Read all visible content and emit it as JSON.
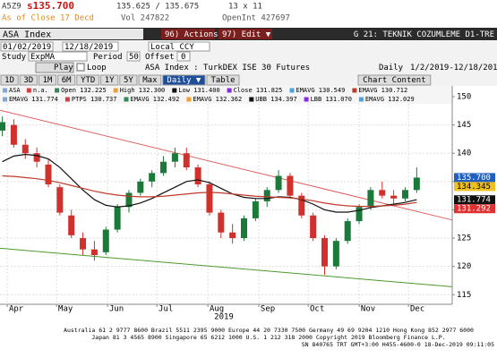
{
  "header": {
    "ticker": "A5Z9",
    "last": "s135.700",
    "bid_ask": "135.625 / 135.675",
    "size": "13 x 11",
    "as_of": "As of Close 17 Decd",
    "volume": "Vol 247822",
    "open_interest": "OpenInt 427697"
  },
  "toolbar": {
    "security": "ASA Index",
    "actions": "96) Actions ▼",
    "edit": "97) Edit ▼",
    "page_title": "G 21: TEKNIK COZUMLEME D1-TRE"
  },
  "controls": {
    "start_date": "01/02/2019",
    "end_date": "12/18/2019",
    "currency": "Local CCY",
    "study_label": "Study",
    "study": "ExpMA",
    "period_label": "Period",
    "period": 50,
    "offset_label": "Offset",
    "offset": 0,
    "play": "Play",
    "loop": "Loop",
    "description": "ASA Index : TurkDEX ISE 30 Futures",
    "frequency": "Daily",
    "range": "1/2/2019-12/18/2019"
  },
  "tabs": [
    "1D",
    "3D",
    "1M",
    "6M",
    "YTD",
    "1Y",
    "5Y",
    "Max",
    "Daily ▼",
    "Table",
    "Chart Content"
  ],
  "legend": [
    [
      "ASA",
      "n.a.",
      "Open 132.225",
      "High 132.300",
      "Low 131.400",
      "Close 131.825",
      "EMAVG 130.549",
      "EMAVG 130.712"
    ],
    [
      "EMAVG 131.774",
      "PTPS 130.737",
      "EMAVG 132.492",
      "EMAVG 132.362",
      "UBB 134.397",
      "LBB 131.070",
      "EMAVG 132.029"
    ]
  ],
  "chart_data": {
    "type": "candlestick",
    "x": [
      88,
      95,
      102,
      109,
      116,
      123,
      130,
      137,
      144,
      151,
      158,
      165,
      172,
      179,
      186,
      193,
      200,
      207,
      214,
      221,
      228,
      235,
      242,
      249,
      256,
      263,
      270,
      277,
      284,
      291,
      298,
      305,
      312,
      319,
      326,
      333,
      340
    ],
    "open": [
      144,
      145,
      141.5,
      140,
      138,
      134,
      129,
      125,
      123,
      122.5,
      126.5,
      130.5,
      133,
      135,
      136.5,
      138.5,
      140,
      137.5,
      134.5,
      129.5,
      126,
      125,
      128.5,
      131.5,
      133.5,
      136,
      132.5,
      129,
      125,
      120,
      124.5,
      128,
      130.5,
      133.5,
      132.5,
      132,
      133.5
    ],
    "high": [
      146.5,
      146,
      142.5,
      141,
      139,
      134.5,
      130,
      126,
      124.5,
      127,
      131,
      133.5,
      135.5,
      137,
      139.5,
      141,
      141,
      138,
      135,
      130,
      127.5,
      129,
      132,
      134,
      137,
      136.5,
      133,
      129.5,
      125.5,
      125,
      128.5,
      131,
      134,
      135,
      133.5,
      134,
      137.5
    ],
    "low": [
      143,
      141,
      139,
      137.5,
      134,
      129,
      125,
      122,
      121,
      122,
      126,
      129.5,
      132.5,
      134,
      136,
      137.5,
      137,
      134,
      129,
      125,
      124,
      124.5,
      128,
      130.5,
      133,
      132,
      128.5,
      124.5,
      118.5,
      119.5,
      124,
      127.5,
      130,
      132,
      131,
      131.5,
      133
    ],
    "close": [
      145.5,
      141.5,
      140,
      138.5,
      134.5,
      129.5,
      125.5,
      123,
      122,
      126.5,
      130.5,
      133,
      135,
      136.5,
      138.5,
      140,
      137.5,
      134.5,
      129.5,
      126,
      125,
      128.5,
      131.5,
      133.5,
      136,
      132.5,
      129,
      125,
      120,
      124.5,
      128,
      130.5,
      133.5,
      132.5,
      132,
      133.5,
      135.7
    ],
    "up_color": "#1b7a3a",
    "down_color": "#d0312d",
    "series": [
      {
        "color": "#111111",
        "values": [
          138.5,
          139.5,
          139.8,
          139.6,
          139,
          137.5,
          135.5,
          133.5,
          131.8,
          130.8,
          130.5,
          130.7,
          131.2,
          132,
          133,
          134,
          135,
          135.3,
          134.8,
          133.8,
          132.8,
          132.2,
          132,
          132,
          132.3,
          132.2,
          131.8,
          131,
          130,
          129.6,
          129.6,
          129.9,
          130.4,
          130.7,
          131,
          131.3,
          131.8
        ]
      },
      {
        "color": "#c0392b",
        "values": [
          136,
          135.9,
          135.7,
          135.5,
          135.2,
          134.8,
          134.3,
          133.8,
          133.3,
          132.9,
          132.6,
          132.4,
          132.3,
          132.3,
          132.4,
          132.6,
          132.8,
          133,
          133.1,
          133,
          132.8,
          132.6,
          132.4,
          132.3,
          132.2,
          132.1,
          131.9,
          131.6,
          131.2,
          130.9,
          130.7,
          130.6,
          130.6,
          130.7,
          130.8,
          131,
          131.3
        ]
      }
    ],
    "trendlines": [
      {
        "color": "#e06060",
        "x": [
          86.6,
          361.6
        ],
        "y": [
          147.6,
          128.2
        ]
      },
      {
        "color": "#4a9a2a",
        "x": [
          86.6,
          361.6
        ],
        "y": [
          123.2,
          116.4
        ]
      }
    ],
    "last_values": [
      {
        "value": 135.7,
        "label": "135.700",
        "color": "#1f5fbf"
      },
      {
        "value": 134.345,
        "label": "134.345",
        "color": "#f0c020"
      },
      {
        "value": 131.774,
        "label": "131.774",
        "color": "#111111"
      },
      {
        "value": 131.292,
        "label": "131.292",
        "color": "#e03030"
      }
    ],
    "xlim": [
      86.6,
      361.6
    ],
    "xticks": [
      {
        "value": 91,
        "label": "Apr"
      },
      {
        "value": 121,
        "label": "May"
      },
      {
        "value": 152,
        "label": "Jun"
      },
      {
        "value": 182,
        "label": "Jul"
      },
      {
        "value": 213,
        "label": "Aug"
      },
      {
        "value": 244,
        "label": "Sep"
      },
      {
        "value": 274,
        "label": "Oct"
      },
      {
        "value": 305,
        "label": "Nov"
      },
      {
        "value": 335,
        "label": "Dec"
      }
    ],
    "x_label": "2019",
    "ylim": [
      113.3,
      151.9
    ],
    "yticks": [
      115,
      120,
      125,
      130,
      135,
      140,
      145,
      150
    ],
    "grid": true
  },
  "footer": [
    "Australia 61 2 9777 8600 Brazil 5511 2395 9000 Europe 44 20 7330 7500 Germany 49 69 9204 1210 Hong Kong 852 2977 6000",
    "Japan 81 3 4565 8900      Singapore 65 6212 1000      U.S. 1 212 318 2000       Copyright 2019 Bloomberg Finance L.P.",
    "SN 840765 TRT  GMT+3:00 H455-4600-0 18-Dec-2019 09:11:05"
  ]
}
